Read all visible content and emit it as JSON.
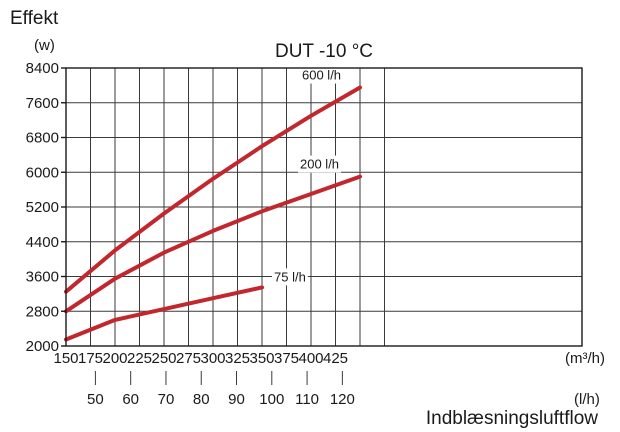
{
  "chart_data": {
    "type": "line",
    "title": "DUT -10 °C",
    "ylabel": "Effekt",
    "yunit": "(w)",
    "xlabel": "Indblæsningsluftflow",
    "xunit_primary": "(m³/h)",
    "xunit_secondary": "(l/h)",
    "ylim": [
      2000,
      8400
    ],
    "xlim": [
      150,
      425
    ],
    "grid": true,
    "y_ticks": [
      2000,
      2800,
      3600,
      4400,
      5200,
      6000,
      6800,
      7600,
      8400
    ],
    "x_ticks": [
      150,
      175,
      200,
      225,
      250,
      275,
      300,
      325,
      350,
      375,
      400,
      425
    ],
    "x_secondary_ticks": [
      50,
      60,
      70,
      80,
      90,
      100,
      110,
      120
    ],
    "series": [
      {
        "name": "600 l/h",
        "color": "#c1272d",
        "x": [
          150,
          200,
          250,
          300,
          350,
          400,
          450
        ],
        "y": [
          3250,
          4200,
          5050,
          5850,
          6600,
          7300,
          7950
        ]
      },
      {
        "name": "200 l/h",
        "color": "#c1272d",
        "x": [
          150,
          200,
          250,
          300,
          350,
          400,
          450
        ],
        "y": [
          2800,
          3550,
          4150,
          4650,
          5100,
          5500,
          5900
        ]
      },
      {
        "name": "75 l/h",
        "color": "#c1272d",
        "x": [
          150,
          200,
          250,
          300,
          350
        ],
        "y": [
          2150,
          2600,
          2850,
          3100,
          3350
        ]
      }
    ]
  }
}
